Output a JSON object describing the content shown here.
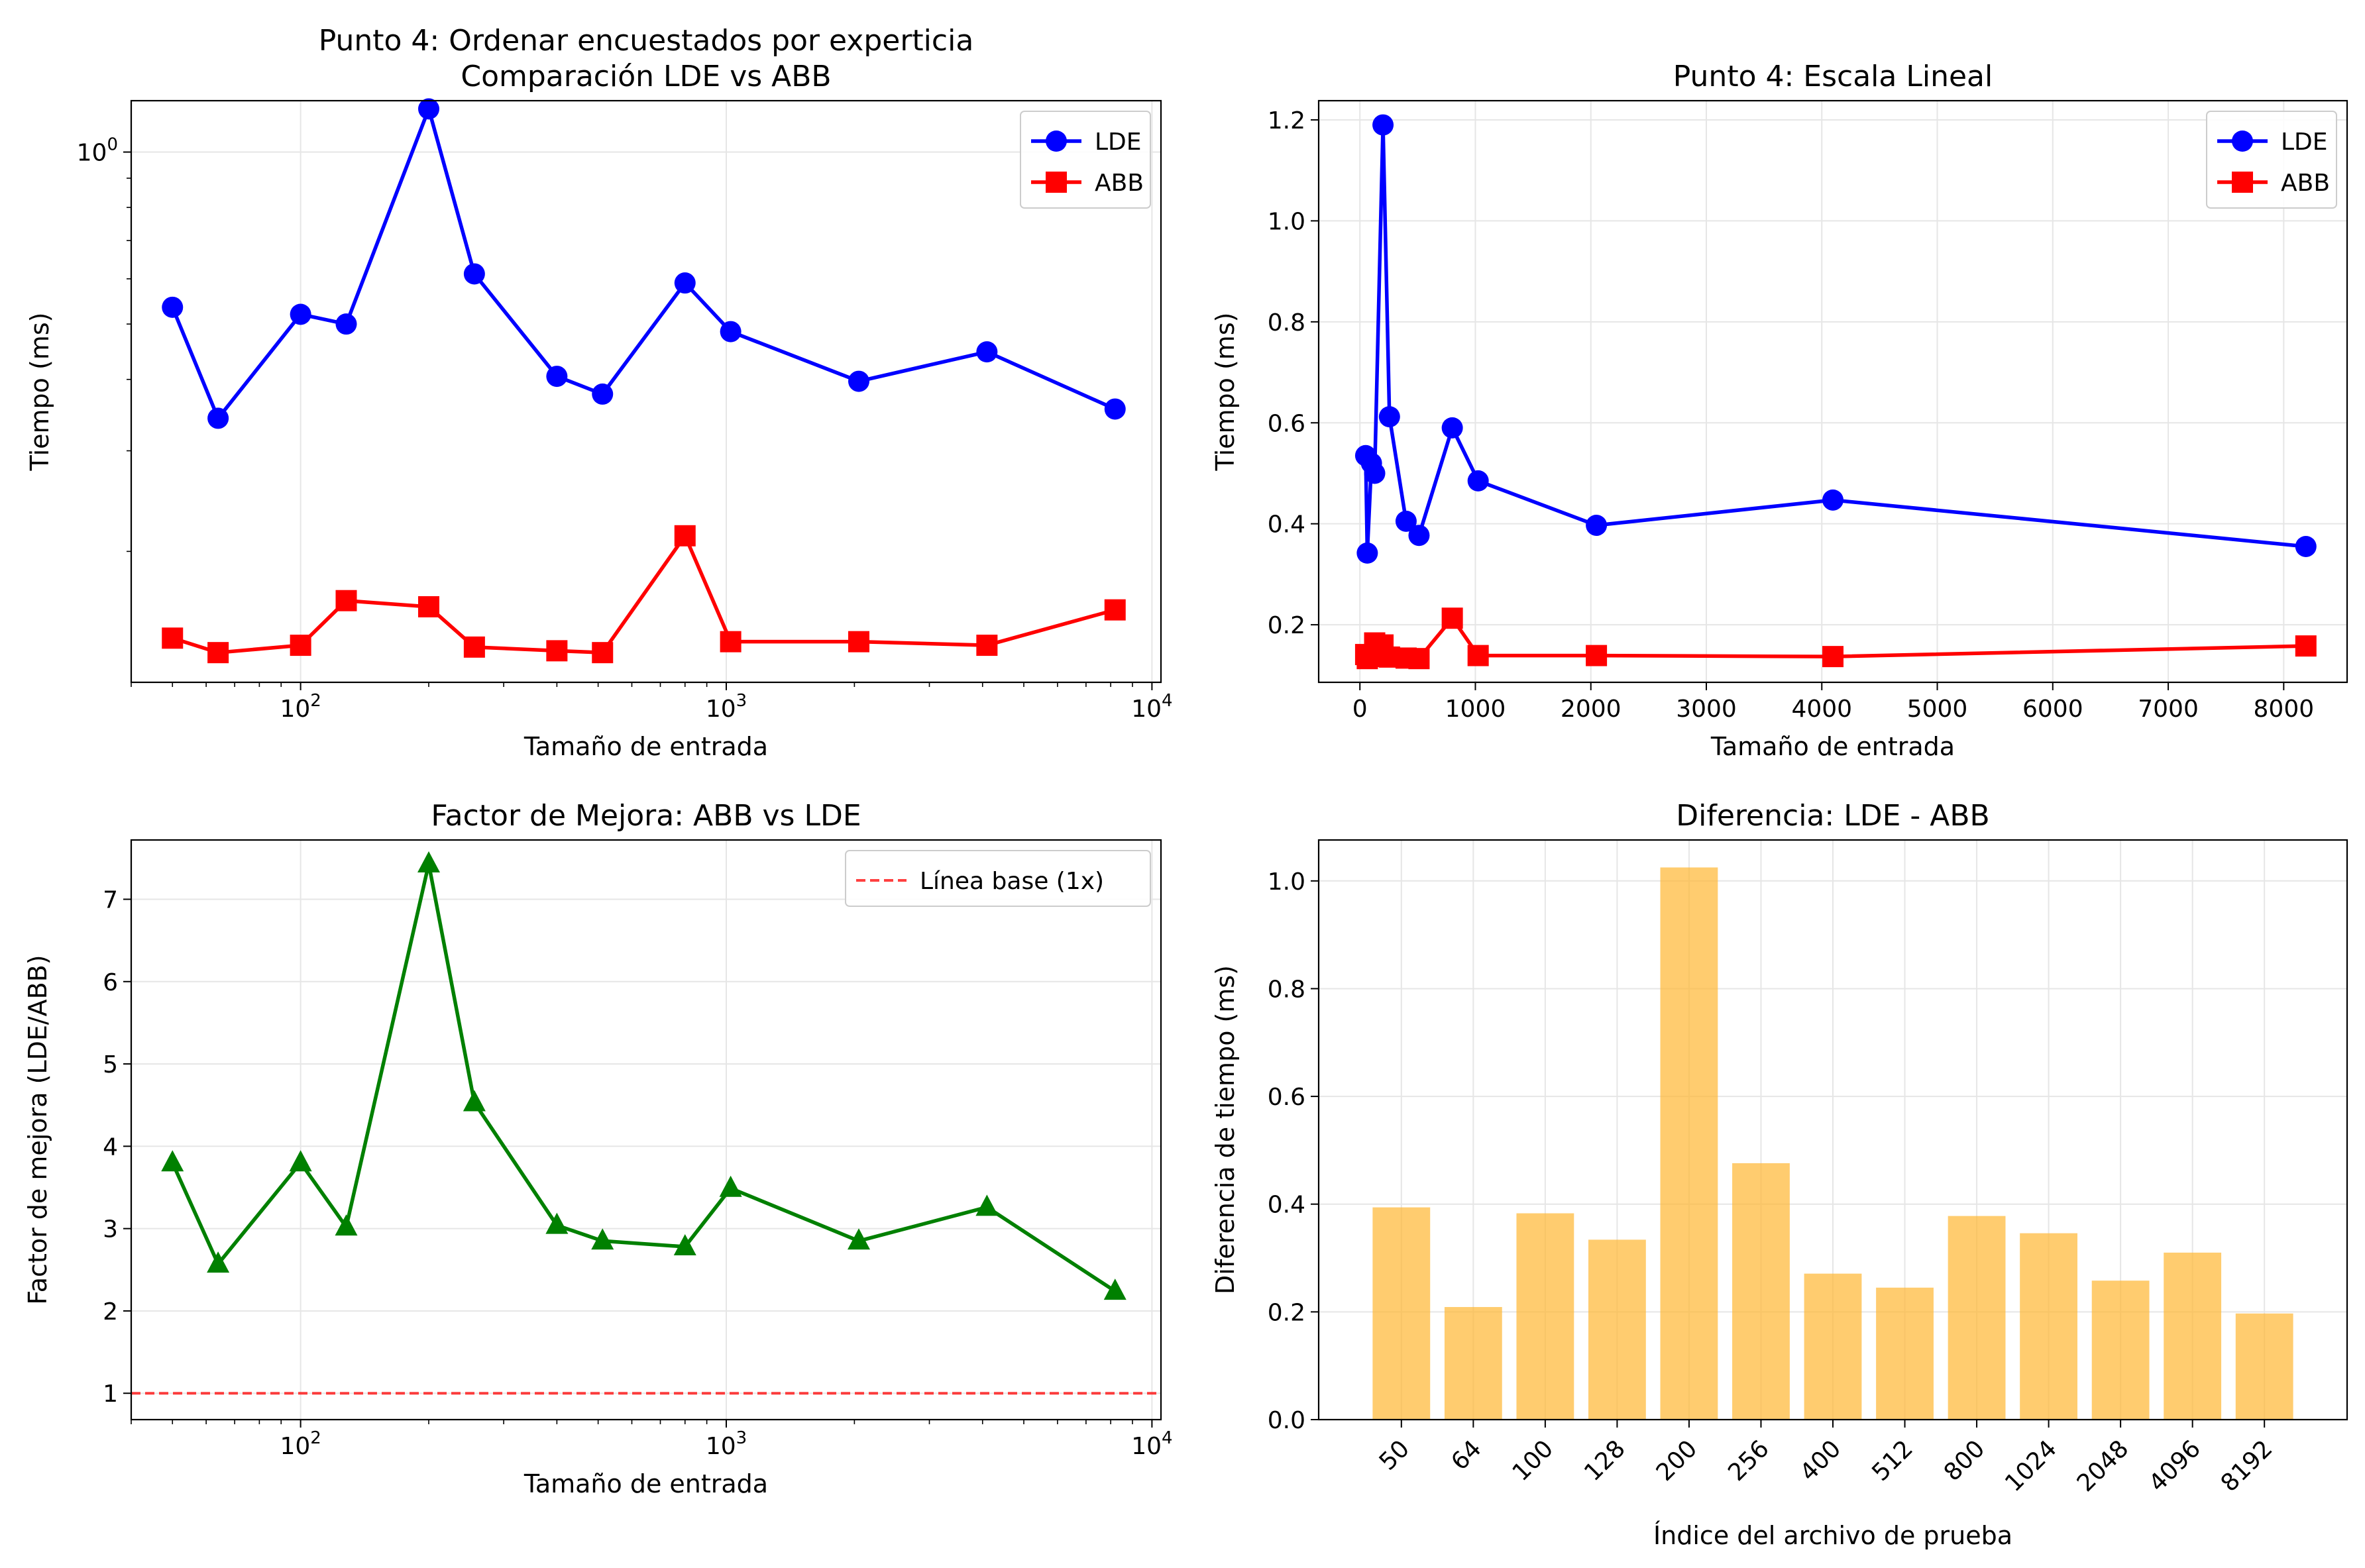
{
  "chart_data": [
    {
      "type": "line",
      "title": "Punto 4: Ordenar encuestados por experticia\nComparación LDE vs ABB",
      "xlabel": "Tamaño de entrada",
      "ylabel": "Tiempo (ms)",
      "xscale": "log",
      "yscale": "log",
      "xlim": [
        40,
        10500
      ],
      "ylim": [
        0.118,
        1.23
      ],
      "grid": true,
      "legend_position": "top-right",
      "xticks": [
        100,
        1000,
        10000
      ],
      "xtick_labels": [
        {
          "base": "10",
          "exp": "2"
        },
        {
          "base": "10",
          "exp": "3"
        },
        {
          "base": "10",
          "exp": "4"
        }
      ],
      "yticks": [
        1.0
      ],
      "ytick_labels": [
        {
          "base": "10",
          "exp": "0"
        }
      ],
      "x": [
        50,
        64,
        100,
        128,
        200,
        256,
        400,
        512,
        800,
        1024,
        2048,
        4096,
        8192
      ],
      "series": [
        {
          "name": "LDE",
          "color": "#0000ff",
          "marker": "circle",
          "values": [
            0.535,
            0.342,
            0.52,
            0.5,
            1.19,
            0.612,
            0.405,
            0.377,
            0.59,
            0.485,
            0.397,
            0.447,
            0.355
          ]
        },
        {
          "name": "ABB",
          "color": "#ff0000",
          "marker": "square",
          "values": [
            0.141,
            0.133,
            0.137,
            0.164,
            0.16,
            0.136,
            0.134,
            0.133,
            0.213,
            0.139,
            0.139,
            0.137,
            0.158
          ]
        }
      ]
    },
    {
      "type": "line",
      "title": "Punto 4: Escala Lineal",
      "xlabel": "Tamaño de entrada",
      "ylabel": "Tiempo (ms)",
      "xscale": "linear",
      "yscale": "linear",
      "xlim": [
        -357,
        8549
      ],
      "ylim": [
        0.086,
        1.238
      ],
      "grid": true,
      "legend_position": "top-right",
      "xticks": [
        0,
        1000,
        2000,
        3000,
        4000,
        5000,
        6000,
        7000,
        8000
      ],
      "yticks": [
        0.2,
        0.4,
        0.6,
        0.8,
        1.0,
        1.2
      ],
      "ytick_labels": [
        "0.2",
        "0.4",
        "0.6",
        "0.8",
        "1.0",
        "1.2"
      ],
      "x": [
        50,
        64,
        100,
        128,
        200,
        256,
        400,
        512,
        800,
        1024,
        2048,
        4096,
        8192
      ],
      "series": [
        {
          "name": "LDE",
          "color": "#0000ff",
          "marker": "circle",
          "values": [
            0.535,
            0.342,
            0.52,
            0.5,
            1.19,
            0.612,
            0.405,
            0.377,
            0.59,
            0.485,
            0.397,
            0.447,
            0.355
          ]
        },
        {
          "name": "ABB",
          "color": "#ff0000",
          "marker": "square",
          "values": [
            0.141,
            0.133,
            0.137,
            0.164,
            0.16,
            0.136,
            0.134,
            0.133,
            0.213,
            0.139,
            0.139,
            0.137,
            0.158
          ]
        }
      ]
    },
    {
      "type": "line",
      "title": "Factor de Mejora: ABB vs LDE",
      "xlabel": "Tamaño de entrada",
      "ylabel": "Factor de mejora (LDE/ABB)",
      "xscale": "log",
      "yscale": "linear",
      "xlim": [
        40,
        10500
      ],
      "ylim": [
        0.68,
        7.72
      ],
      "grid": true,
      "legend_position": "top-right",
      "xticks": [
        100,
        1000,
        10000
      ],
      "xtick_labels": [
        {
          "base": "10",
          "exp": "2"
        },
        {
          "base": "10",
          "exp": "3"
        },
        {
          "base": "10",
          "exp": "4"
        }
      ],
      "yticks": [
        1,
        2,
        3,
        4,
        5,
        6,
        7
      ],
      "x": [
        50,
        64,
        100,
        128,
        200,
        256,
        400,
        512,
        800,
        1024,
        2048,
        4096,
        8192
      ],
      "series": [
        {
          "color": "#008000",
          "marker": "triangle",
          "values": [
            3.8,
            2.57,
            3.8,
            3.02,
            7.43,
            4.53,
            3.04,
            2.85,
            2.78,
            3.49,
            2.85,
            3.26,
            2.24
          ]
        }
      ],
      "reference_line": {
        "label": "Línea base (1x)",
        "y": 1,
        "color": "#ff0000",
        "style": "dashed"
      }
    },
    {
      "type": "bar",
      "title": "Diferencia: LDE - ABB",
      "xlabel": "Índice del archivo de prueba",
      "ylabel": "Diferencia de tiempo (ms)",
      "categories": [
        "50",
        "64",
        "100",
        "128",
        "200",
        "256",
        "400",
        "512",
        "800",
        "1024",
        "2048",
        "4096",
        "8192"
      ],
      "values": [
        0.394,
        0.209,
        0.383,
        0.334,
        1.025,
        0.476,
        0.271,
        0.245,
        0.378,
        0.346,
        0.258,
        0.31,
        0.197
      ],
      "color": "#ffb732",
      "ylim": [
        0,
        1.076
      ],
      "yticks": [
        0.0,
        0.2,
        0.4,
        0.6,
        0.8,
        1.0
      ],
      "ytick_labels": [
        "0.0",
        "0.2",
        "0.4",
        "0.6",
        "0.8",
        "1.0"
      ],
      "grid": true
    }
  ]
}
